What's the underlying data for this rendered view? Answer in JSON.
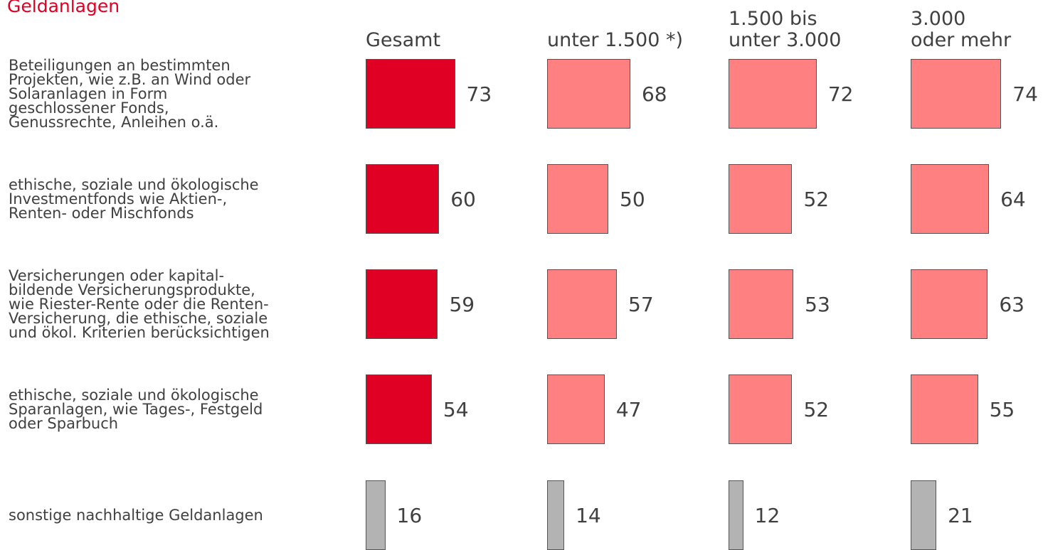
{
  "chart_data": {
    "type": "bar",
    "title": "Geldanlagen",
    "categories": [
      "Beteiligungen an bestimmten\nProjekten, wie z.B. an Wind oder\nSolaranlagen in Form\ngeschlossener Fonds,\nGenussrechte, Anleihen o.ä.",
      "ethische, soziale und ökologische\nInvestmentfonds wie Aktien-,\nRenten- oder Mischfonds",
      "Versicherungen oder kapital-\nbildende Versicherungsprodukte,\nwie Riester-Rente oder die Renten-\nVersicherung, die ethische, soziale\nund ökol. Kriterien berücksichtigen",
      "ethische, soziale und ökologische\nSparanlagen, wie Tages-, Festgeld\noder Sparbuch",
      "sonstige nachhaltige Geldanlagen"
    ],
    "series": [
      {
        "name": "Gesamt",
        "colors": [
          "#e00024",
          "#e00024",
          "#e00024",
          "#e00024",
          "#b3b3b3"
        ],
        "values": [
          73,
          60,
          59,
          54,
          16
        ]
      },
      {
        "name": "unter 1.500 *)",
        "colors": [
          "#ff8080",
          "#ff8080",
          "#ff8080",
          "#ff8080",
          "#b3b3b3"
        ],
        "values": [
          68,
          50,
          57,
          47,
          14
        ]
      },
      {
        "name": "1.500 bis\nunter 3.000",
        "colors": [
          "#ff8080",
          "#ff8080",
          "#ff8080",
          "#ff8080",
          "#b3b3b3"
        ],
        "values": [
          72,
          52,
          53,
          52,
          12
        ]
      },
      {
        "name": "3.000\noder mehr",
        "colors": [
          "#ff8080",
          "#ff8080",
          "#ff8080",
          "#ff8080",
          "#b3b3b3"
        ],
        "values": [
          74,
          64,
          63,
          55,
          21
        ]
      }
    ],
    "xlim": [
      0,
      100
    ]
  }
}
